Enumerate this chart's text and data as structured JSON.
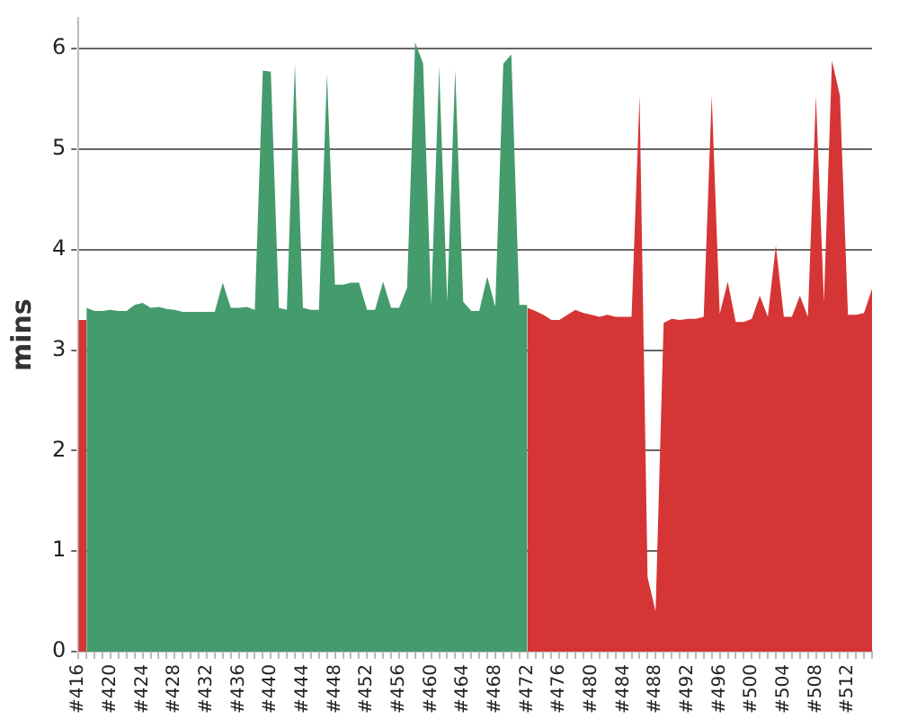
{
  "chart_data": {
    "type": "area",
    "ylabel": "mins",
    "categories": [
      "#416",
      null,
      null,
      null,
      "#420",
      null,
      null,
      null,
      "#424",
      null,
      null,
      null,
      "#428",
      null,
      null,
      null,
      "#432",
      null,
      null,
      null,
      "#436",
      null,
      null,
      null,
      "#440",
      null,
      null,
      null,
      "#444",
      null,
      null,
      null,
      "#448",
      null,
      null,
      null,
      "#452",
      null,
      null,
      null,
      "#456",
      null,
      null,
      null,
      "#460",
      null,
      null,
      null,
      "#464",
      null,
      null,
      null,
      "#468",
      null,
      null,
      null,
      "#472",
      null,
      null,
      null,
      "#476",
      null,
      null,
      null,
      "#480",
      null,
      null,
      null,
      "#484",
      null,
      null,
      null,
      "#488",
      null,
      null,
      null,
      "#492",
      null,
      null,
      null,
      "#496",
      null,
      null,
      null,
      "#500",
      null,
      null,
      null,
      "#504",
      null,
      null,
      null,
      "#508",
      null,
      null,
      null,
      "#512",
      null,
      null,
      null
    ],
    "series": [
      {
        "color": "#449b6c",
        "values": [
          null,
          3.42,
          3.39,
          3.39,
          3.4,
          3.39,
          3.39,
          3.45,
          3.47,
          3.42,
          3.43,
          3.41,
          3.4,
          3.38,
          3.38,
          3.38,
          3.38,
          3.38,
          3.67,
          3.42,
          3.42,
          3.43,
          3.4,
          5.78,
          5.77,
          3.42,
          3.4,
          5.85,
          3.42,
          3.4,
          3.4,
          5.75,
          3.65,
          3.65,
          3.67,
          3.67,
          3.4,
          3.4,
          3.68,
          3.42,
          3.42,
          3.62,
          6.06,
          5.85,
          3.45,
          5.82,
          3.48,
          5.79,
          3.48,
          3.39,
          3.39,
          3.73,
          3.43,
          5.85,
          5.94,
          3.45,
          3.45,
          null,
          null,
          null,
          null,
          null,
          null,
          null,
          null,
          null,
          null,
          null,
          null,
          null,
          null,
          null,
          null,
          null,
          null,
          null,
          null,
          null,
          null,
          null,
          null,
          null,
          null,
          null,
          null,
          null,
          null,
          null,
          null,
          null,
          null,
          null,
          null,
          null,
          null,
          null,
          null,
          null,
          null,
          null
        ]
      },
      {
        "color": "#d63535",
        "values": [
          3.3,
          3.3,
          null,
          null,
          null,
          null,
          null,
          null,
          null,
          null,
          null,
          null,
          null,
          null,
          null,
          null,
          null,
          null,
          null,
          null,
          null,
          null,
          null,
          null,
          null,
          null,
          null,
          null,
          null,
          null,
          null,
          null,
          null,
          null,
          null,
          null,
          null,
          null,
          null,
          null,
          null,
          null,
          null,
          null,
          null,
          null,
          null,
          null,
          null,
          null,
          null,
          null,
          null,
          null,
          null,
          null,
          3.42,
          3.39,
          3.35,
          3.3,
          3.3,
          3.35,
          3.4,
          3.37,
          3.35,
          3.33,
          3.35,
          3.33,
          3.33,
          3.33,
          5.53,
          0.74,
          0.4,
          3.27,
          3.31,
          3.3,
          3.31,
          3.31,
          3.33,
          5.53,
          3.36,
          3.68,
          3.28,
          3.28,
          3.31,
          3.54,
          3.33,
          4.04,
          3.33,
          3.33,
          3.54,
          3.33,
          5.53,
          3.48,
          5.88,
          5.53,
          3.35,
          3.35,
          3.37,
          3.61
        ]
      }
    ],
    "ylim": [
      0,
      6.3
    ],
    "yticks": [
      0,
      1,
      2,
      3,
      4,
      5,
      6
    ],
    "grid": "y",
    "line_style": "dashed",
    "legend": false
  }
}
